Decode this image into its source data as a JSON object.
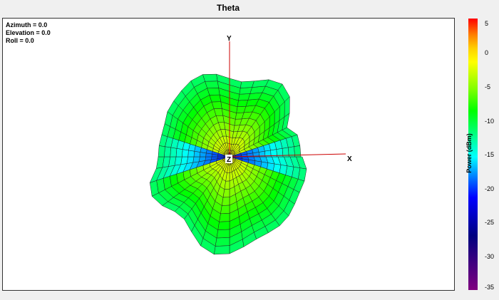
{
  "title": "Theta",
  "view": {
    "azimuth": "Azimuth = 0.0",
    "elevation": "Elevation = 0.0",
    "roll": "Roll = 0.0"
  },
  "axes": {
    "x": "X",
    "y": "Y",
    "z": "Z",
    "color": "#cc0000"
  },
  "colorbar": {
    "label": "Power  (dBm)",
    "ticks": [
      "5",
      "0",
      "-5",
      "-10",
      "-15",
      "-20",
      "-25",
      "-30",
      "-35"
    ],
    "range": [
      -35,
      5
    ]
  }
}
